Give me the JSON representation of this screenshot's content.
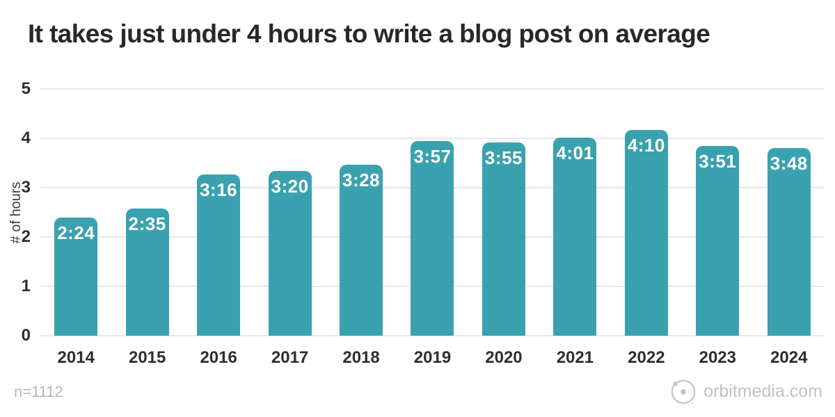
{
  "title": "It takes just under 4 hours to write a blog post on average",
  "footer": {
    "sample_note": "n=1112",
    "brand": "orbitmedia.com"
  },
  "icons": {
    "brand_logo": "orbit-icon"
  },
  "colors": {
    "bar": "#3aa2ae",
    "title_text": "#282828",
    "axis_text": "#2e2e2e",
    "gridline": "#e8e8e8",
    "bar_label_text": "#ffffff",
    "muted_text": "#b5b5b5"
  },
  "chart_data": {
    "type": "bar",
    "title": "It takes just under 4 hours to write a blog post on average",
    "categories": [
      "2014",
      "2015",
      "2016",
      "2017",
      "2018",
      "2019",
      "2020",
      "2021",
      "2022",
      "2023",
      "2024"
    ],
    "values": [
      2.4,
      2.583,
      3.267,
      3.333,
      3.467,
      3.95,
      3.917,
      4.017,
      4.167,
      3.85,
      3.8
    ],
    "bar_labels": [
      "2:24",
      "2:35",
      "3:16",
      "3:20",
      "3:28",
      "3:57",
      "3:55",
      "4:01",
      "4:10",
      "3:51",
      "3:48"
    ],
    "xlabel": "",
    "ylabel": "# of hours",
    "ylim": [
      0,
      5
    ],
    "yticks": [
      0,
      1,
      2,
      3,
      4,
      5
    ],
    "grid": true,
    "legend": false,
    "annotation_note": "n=1112"
  }
}
